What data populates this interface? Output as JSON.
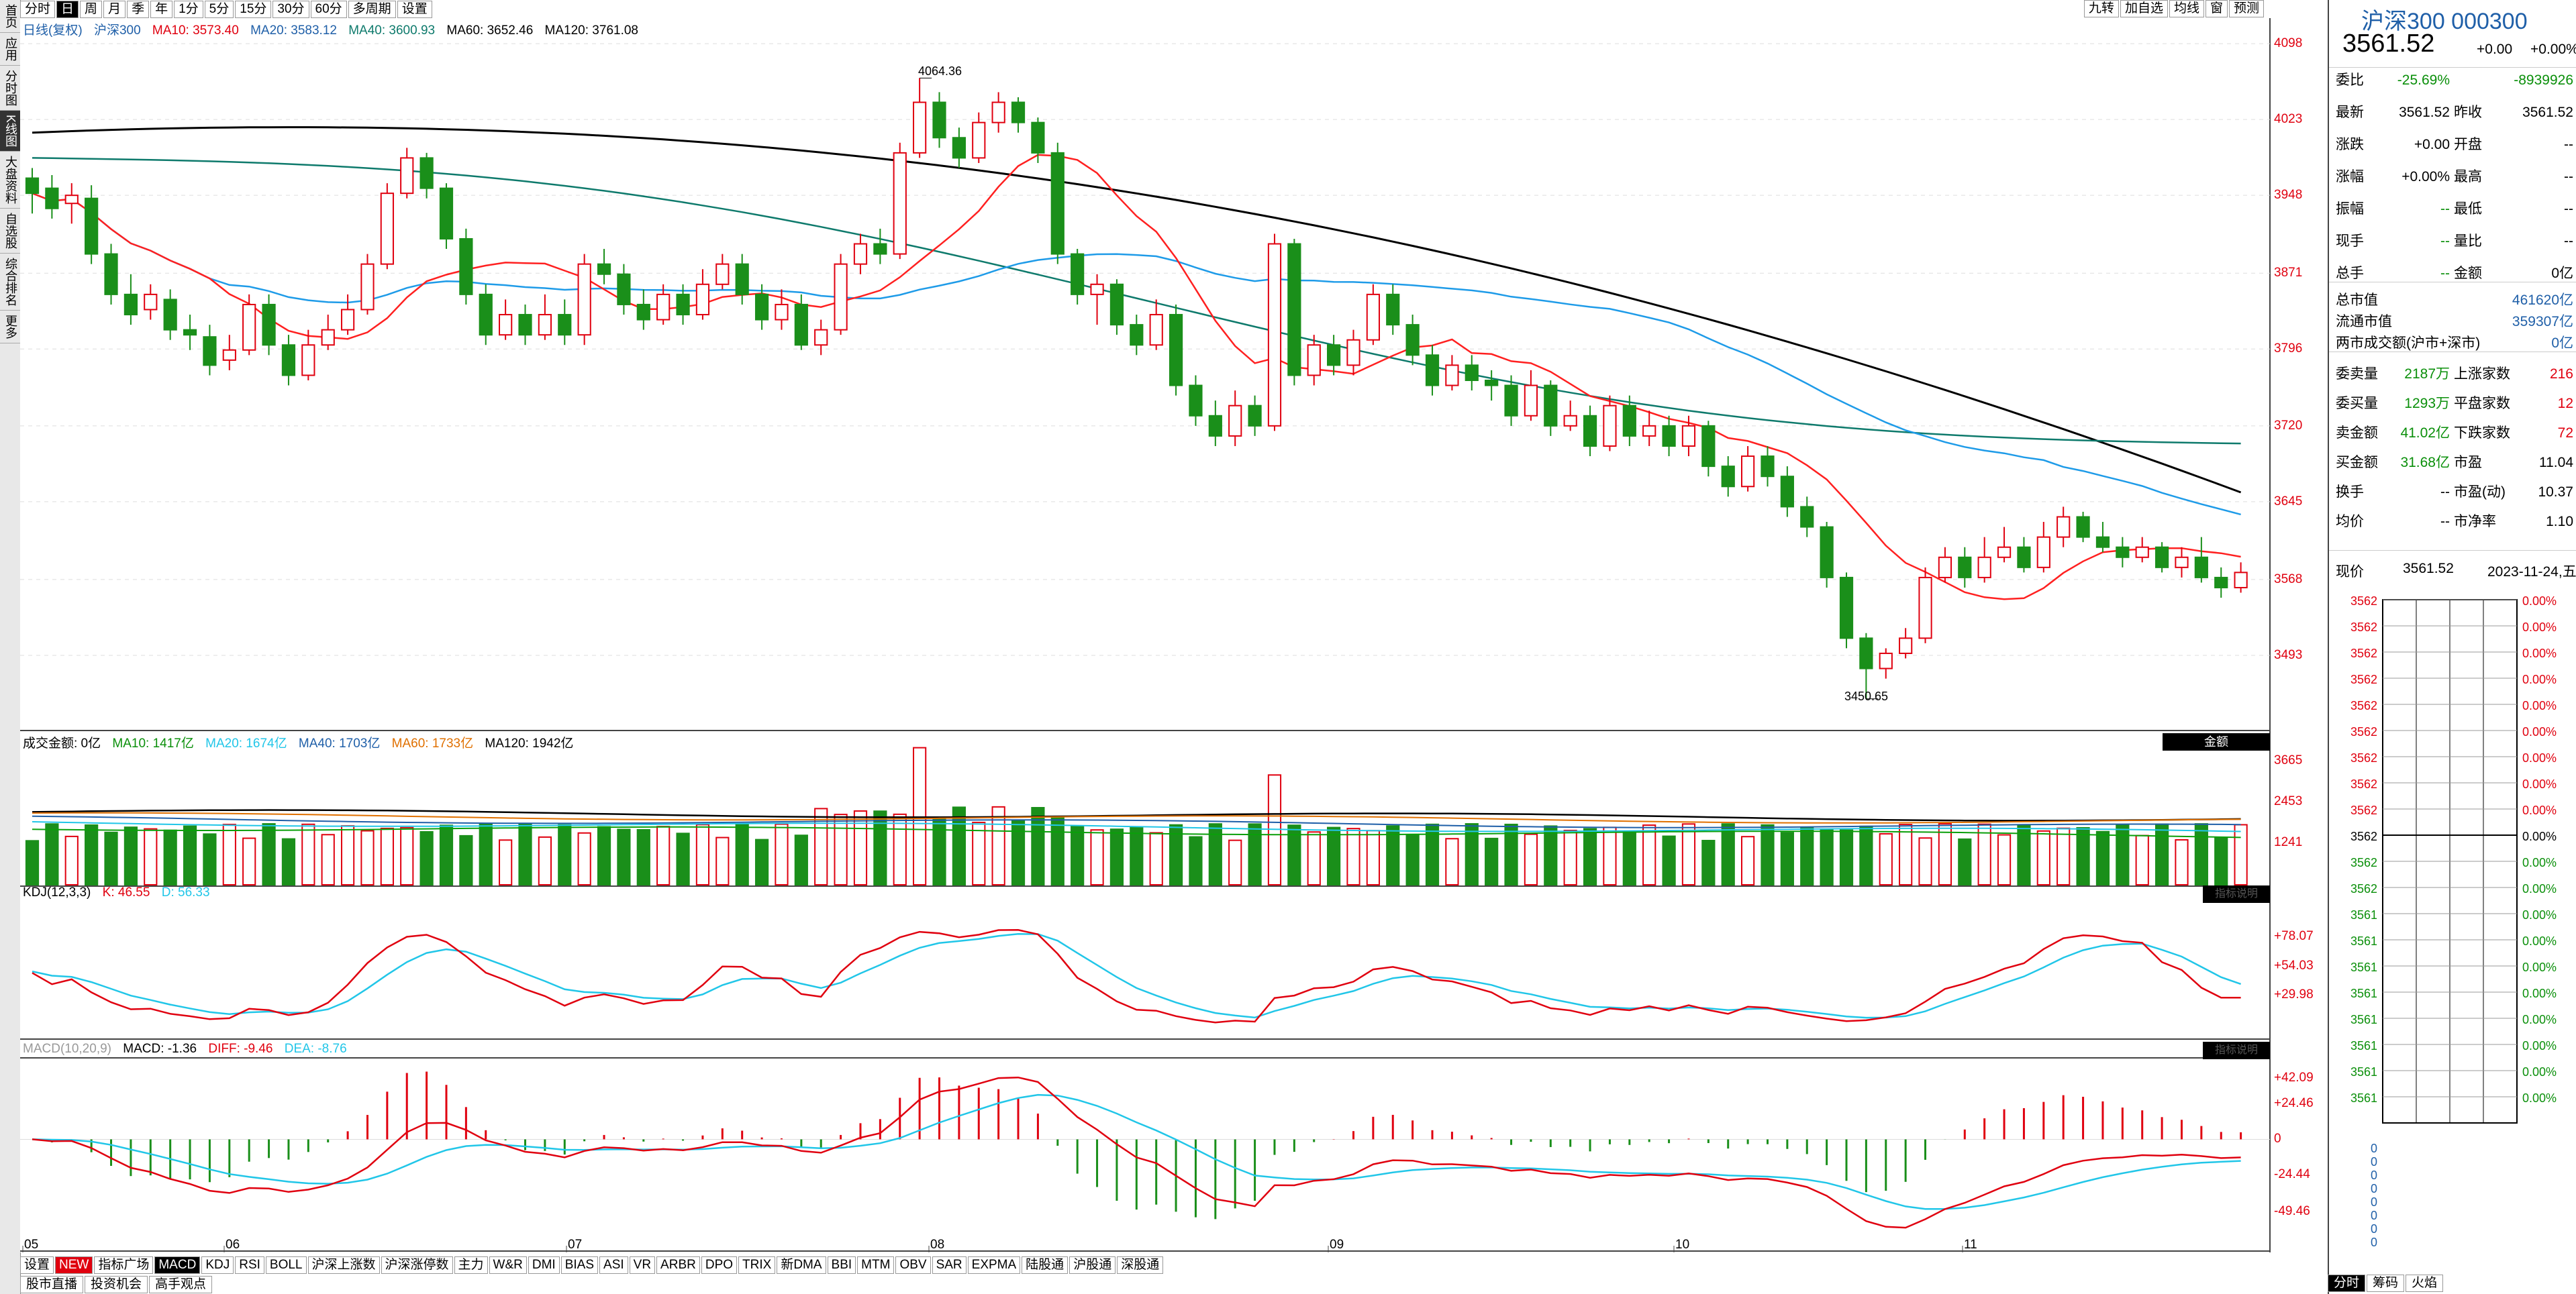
{
  "left_tabs": [
    "首页",
    "应用",
    "分时图",
    "K线图",
    "大盘资料",
    "自选股",
    "综合排名",
    "更多"
  ],
  "period_tabs": [
    "分时",
    "日",
    "周",
    "月",
    "季",
    "年",
    "1分",
    "5分",
    "15分",
    "30分",
    "60分",
    "多周期",
    "设置"
  ],
  "right_tools": [
    "九转",
    "加自选",
    "均线",
    "窗",
    "预测"
  ],
  "main_header": {
    "label": "日线(复权)",
    "name": "沪深300",
    "ma10": "MA10: 3573.40",
    "ma20": "MA20: 3583.12",
    "ma40": "MA40: 3600.93",
    "ma60": "MA60: 3652.46",
    "ma120": "MA120: 3761.08"
  },
  "price_axis": [
    "4098",
    "4023",
    "3948",
    "3871",
    "3796",
    "3720",
    "3645",
    "3568",
    "3493"
  ],
  "annotations": {
    "high": "4064.36",
    "low": "3450.65"
  },
  "vol_header": {
    "label": "成交金额: 0亿",
    "ma10": "MA10: 1417亿",
    "ma20": "MA20: 1674亿",
    "ma40": "MA40: 1703亿",
    "ma60": "MA60: 1733亿",
    "ma120": "MA120: 1942亿",
    "btn": "金额"
  },
  "vol_axis": [
    "3665",
    "2453",
    "1241"
  ],
  "kdj_header": {
    "label": "KDJ(12,3,3)",
    "k": "K: 46.55",
    "d": "D: 56.33",
    "btn": "指标说明"
  },
  "kdj_axis": [
    "+78.07",
    "+54.03",
    "+29.98"
  ],
  "macd_header": {
    "label": "MACD(10,20,9)",
    "macd": "MACD: -1.36",
    "diff": "DIFF: -9.46",
    "dea": "DEA: -8.76",
    "btn": "指标说明"
  },
  "macd_axis": [
    "+42.09",
    "+24.46",
    "0",
    "-24.44",
    "-49.46"
  ],
  "x_labels": [
    "05",
    "06",
    "07",
    "08",
    "09",
    "10",
    "11"
  ],
  "indicator_tabs": [
    "设置",
    "NEW",
    "指标广场",
    "MACD",
    "KDJ",
    "RSI",
    "BOLL",
    "沪深上涨数",
    "沪深涨停数",
    "主力",
    "W&R",
    "DMI",
    "BIAS",
    "ASI",
    "VR",
    "ARBR",
    "DPO",
    "TRIX",
    "新DMA",
    "BBI",
    "MTM",
    "OBV",
    "SAR",
    "EXPMA",
    "陆股通",
    "沪股通",
    "深股通"
  ],
  "bottom_tabs": [
    "股市直播",
    "投资机会",
    "高手观点"
  ],
  "right_bottom_tabs": [
    "分时",
    "筹码",
    "火焰"
  ],
  "quote": {
    "title": "沪深300 000300",
    "price": "3561.52",
    "change": "+0.00",
    "pct": "+0.00%",
    "rows": [
      {
        "l1": "委比",
        "v1": "-25.69%",
        "l2": "",
        "v2": "-8939926"
      },
      {
        "l1": "最新",
        "v1": "3561.52",
        "l2": "昨收",
        "v2": "3561.52"
      },
      {
        "l1": "涨跌",
        "v1": "+0.00",
        "l2": "开盘",
        "v2": "--"
      },
      {
        "l1": "涨幅",
        "v1": "+0.00%",
        "l2": "最高",
        "v2": "--"
      },
      {
        "l1": "振幅",
        "v1": "--",
        "l2": "最低",
        "v2": "--"
      },
      {
        "l1": "现手",
        "v1": "--",
        "l2": "量比",
        "v2": "--"
      },
      {
        "l1": "总手",
        "v1": "--",
        "l2": "金额",
        "v2": "0亿"
      }
    ],
    "rows2": [
      {
        "l": "总市值",
        "v": "461620亿"
      },
      {
        "l": "流通市值",
        "v": "359307亿"
      },
      {
        "l": "两市成交额(沪市+深市)",
        "v": "0亿"
      }
    ],
    "rows3": [
      {
        "l1": "委卖量",
        "v1": "2187万",
        "l2": "上涨家数",
        "v2": "216"
      },
      {
        "l1": "委买量",
        "v1": "1293万",
        "l2": "平盘家数",
        "v2": "12"
      },
      {
        "l1": "卖金额",
        "v1": "41.02亿",
        "l2": "下跌家数",
        "v2": "72"
      },
      {
        "l1": "买金额",
        "v1": "31.68亿",
        "l2": "市盈",
        "v2": "11.04"
      },
      {
        "l1": "换手",
        "v1": "--",
        "l2": "市盈(动)",
        "v2": "10.37"
      },
      {
        "l1": "均价",
        "v1": "--",
        "l2": "市净率",
        "v2": "1.10"
      }
    ],
    "now_label": "现价",
    "now": "3561.52",
    "date": "2023-11-24,五",
    "mini_axis": [
      "3562",
      "3562",
      "3562",
      "3562",
      "3562",
      "3562",
      "3562",
      "3562",
      "3562",
      "3562",
      "3562",
      "3562",
      "3561",
      "3561",
      "3561",
      "3561",
      "3561",
      "3561",
      "3561",
      "3561"
    ],
    "mini_pct": [
      "0.00%",
      "0.00%",
      "0.00%",
      "0.00%",
      "0.00%",
      "0.00%",
      "0.00%",
      "0.00%",
      "0.00%",
      "0.00%",
      "0.00%",
      "0.00%",
      "0.00%",
      "0.00%",
      "0.00%",
      "0.00%",
      "0.00%",
      "0.00%",
      "0.00%",
      "0.00%"
    ],
    "mini_zero": [
      "0",
      "0",
      "0",
      "0",
      "0",
      "0",
      "0",
      "0"
    ]
  },
  "colors": {
    "up": "#e0000f",
    "down": "#1a8f1a",
    "ma10": "#ff2020",
    "ma20": "#1e9be8",
    "ma40": "#0e7a6c",
    "ma120": "#000000",
    "k": "#e0000f",
    "d": "#21c6e8"
  },
  "chart_data": {
    "type": "candlestick",
    "ylim": [
      3420,
      4110
    ],
    "candles": [
      [
        3965,
        3950,
        3975,
        3930
      ],
      [
        3955,
        3935,
        3968,
        3925
      ],
      [
        3940,
        3948,
        3960,
        3920
      ],
      [
        3945,
        3890,
        3958,
        3880
      ],
      [
        3890,
        3850,
        3900,
        3840
      ],
      [
        3850,
        3830,
        3870,
        3820
      ],
      [
        3835,
        3850,
        3860,
        3825
      ],
      [
        3845,
        3815,
        3855,
        3805
      ],
      [
        3815,
        3810,
        3830,
        3795
      ],
      [
        3808,
        3780,
        3820,
        3770
      ],
      [
        3785,
        3795,
        3810,
        3775
      ],
      [
        3795,
        3840,
        3850,
        3790
      ],
      [
        3840,
        3800,
        3850,
        3790
      ],
      [
        3800,
        3770,
        3810,
        3760
      ],
      [
        3770,
        3800,
        3815,
        3765
      ],
      [
        3800,
        3815,
        3830,
        3795
      ],
      [
        3815,
        3835,
        3850,
        3810
      ],
      [
        3835,
        3880,
        3890,
        3830
      ],
      [
        3880,
        3950,
        3960,
        3875
      ],
      [
        3950,
        3985,
        3995,
        3945
      ],
      [
        3985,
        3955,
        3990,
        3945
      ],
      [
        3955,
        3905,
        3960,
        3895
      ],
      [
        3905,
        3850,
        3915,
        3840
      ],
      [
        3850,
        3810,
        3860,
        3800
      ],
      [
        3810,
        3830,
        3845,
        3805
      ],
      [
        3830,
        3810,
        3840,
        3800
      ],
      [
        3810,
        3830,
        3850,
        3805
      ],
      [
        3830,
        3810,
        3845,
        3800
      ],
      [
        3810,
        3880,
        3890,
        3800
      ],
      [
        3880,
        3870,
        3895,
        3860
      ],
      [
        3870,
        3840,
        3880,
        3830
      ],
      [
        3840,
        3825,
        3855,
        3815
      ],
      [
        3825,
        3850,
        3860,
        3820
      ],
      [
        3850,
        3830,
        3860,
        3820
      ],
      [
        3830,
        3860,
        3875,
        3825
      ],
      [
        3860,
        3880,
        3890,
        3855
      ],
      [
        3880,
        3850,
        3890,
        3840
      ],
      [
        3850,
        3825,
        3860,
        3815
      ],
      [
        3825,
        3840,
        3855,
        3815
      ],
      [
        3840,
        3800,
        3850,
        3795
      ],
      [
        3800,
        3815,
        3825,
        3790
      ],
      [
        3815,
        3880,
        3890,
        3810
      ],
      [
        3880,
        3900,
        3910,
        3870
      ],
      [
        3900,
        3890,
        3915,
        3880
      ],
      [
        3890,
        3990,
        4000,
        3885
      ],
      [
        3990,
        4040,
        4064,
        3985
      ],
      [
        4040,
        4005,
        4050,
        3995
      ],
      [
        4005,
        3985,
        4015,
        3975
      ],
      [
        3985,
        4020,
        4030,
        3980
      ],
      [
        4020,
        4040,
        4050,
        4010
      ],
      [
        4040,
        4020,
        4045,
        4010
      ],
      [
        4020,
        3990,
        4025,
        3980
      ],
      [
        3990,
        3890,
        4000,
        3880
      ],
      [
        3890,
        3850,
        3895,
        3840
      ],
      [
        3850,
        3860,
        3870,
        3820
      ],
      [
        3860,
        3820,
        3865,
        3810
      ],
      [
        3820,
        3800,
        3830,
        3790
      ],
      [
        3800,
        3830,
        3845,
        3795
      ],
      [
        3830,
        3760,
        3840,
        3750
      ],
      [
        3760,
        3730,
        3770,
        3720
      ],
      [
        3730,
        3710,
        3745,
        3700
      ],
      [
        3710,
        3740,
        3755,
        3700
      ],
      [
        3740,
        3720,
        3750,
        3710
      ],
      [
        3720,
        3900,
        3910,
        3715
      ],
      [
        3900,
        3770,
        3905,
        3760
      ],
      [
        3770,
        3800,
        3810,
        3760
      ],
      [
        3800,
        3780,
        3810,
        3770
      ],
      [
        3780,
        3805,
        3815,
        3770
      ],
      [
        3805,
        3850,
        3860,
        3800
      ],
      [
        3850,
        3820,
        3860,
        3810
      ],
      [
        3820,
        3790,
        3830,
        3780
      ],
      [
        3790,
        3760,
        3800,
        3750
      ],
      [
        3760,
        3780,
        3790,
        3755
      ],
      [
        3780,
        3765,
        3790,
        3755
      ],
      [
        3765,
        3760,
        3775,
        3745
      ],
      [
        3760,
        3730,
        3770,
        3720
      ],
      [
        3730,
        3760,
        3775,
        3725
      ],
      [
        3760,
        3720,
        3765,
        3710
      ],
      [
        3720,
        3730,
        3745,
        3715
      ],
      [
        3730,
        3700,
        3740,
        3690
      ],
      [
        3700,
        3740,
        3750,
        3695
      ],
      [
        3740,
        3710,
        3750,
        3700
      ],
      [
        3710,
        3720,
        3735,
        3700
      ],
      [
        3720,
        3700,
        3730,
        3690
      ],
      [
        3700,
        3720,
        3730,
        3690
      ],
      [
        3720,
        3680,
        3725,
        3670
      ],
      [
        3680,
        3660,
        3690,
        3650
      ],
      [
        3660,
        3690,
        3700,
        3655
      ],
      [
        3690,
        3670,
        3700,
        3660
      ],
      [
        3670,
        3640,
        3680,
        3630
      ],
      [
        3640,
        3620,
        3650,
        3610
      ],
      [
        3620,
        3570,
        3625,
        3560
      ],
      [
        3570,
        3510,
        3575,
        3500
      ],
      [
        3510,
        3480,
        3515,
        3450
      ],
      [
        3480,
        3495,
        3500,
        3470
      ],
      [
        3495,
        3510,
        3520,
        3490
      ],
      [
        3510,
        3570,
        3580,
        3505
      ],
      [
        3570,
        3590,
        3600,
        3565
      ],
      [
        3590,
        3570,
        3600,
        3560
      ],
      [
        3570,
        3590,
        3610,
        3565
      ],
      [
        3590,
        3600,
        3620,
        3585
      ],
      [
        3600,
        3580,
        3610,
        3575
      ],
      [
        3580,
        3610,
        3625,
        3575
      ],
      [
        3610,
        3630,
        3640,
        3600
      ],
      [
        3630,
        3610,
        3635,
        3605
      ],
      [
        3610,
        3600,
        3625,
        3595
      ],
      [
        3600,
        3590,
        3610,
        3580
      ],
      [
        3590,
        3600,
        3610,
        3585
      ],
      [
        3600,
        3580,
        3605,
        3575
      ],
      [
        3580,
        3590,
        3600,
        3570
      ],
      [
        3590,
        3570,
        3610,
        3565
      ],
      [
        3570,
        3560,
        3580,
        3550
      ],
      [
        3560,
        3575,
        3585,
        3555
      ]
    ]
  }
}
